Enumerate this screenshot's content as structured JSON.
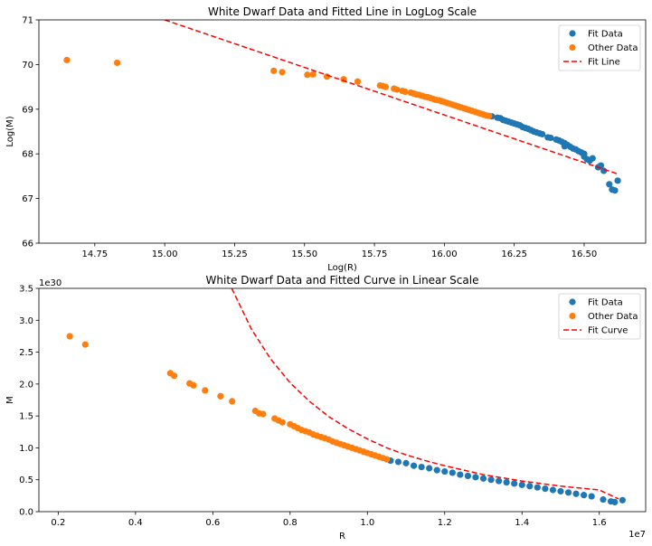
{
  "chart_data": [
    {
      "type": "scatter",
      "title": "White Dwarf Data and Fitted Line in LogLog Scale",
      "xlabel": "Log(R)",
      "ylabel": "Log(M)",
      "offset_text": "",
      "xlim": [
        14.55,
        16.72
      ],
      "ylim": [
        66,
        71
      ],
      "xticks": [
        14.75,
        15.0,
        15.25,
        15.5,
        15.75,
        16.0,
        16.25,
        16.5
      ],
      "xtick_labels": [
        "14.75",
        "15.00",
        "15.25",
        "15.50",
        "15.75",
        "16.00",
        "16.25",
        "16.50"
      ],
      "yticks": [
        66,
        67,
        68,
        69,
        70,
        71
      ],
      "ytick_labels": [
        "66",
        "67",
        "68",
        "69",
        "70",
        "71"
      ],
      "legend_position": "upper right",
      "series": [
        {
          "name": "Fit Data",
          "kind": "scatter",
          "color": "#1f77b4",
          "points": [
            [
              16.17,
              68.84
            ],
            [
              16.19,
              68.81
            ],
            [
              16.2,
              68.8
            ],
            [
              16.21,
              68.76
            ],
            [
              16.22,
              68.74
            ],
            [
              16.23,
              68.72
            ],
            [
              16.24,
              68.7
            ],
            [
              16.25,
              68.68
            ],
            [
              16.26,
              68.66
            ],
            [
              16.27,
              68.64
            ],
            [
              16.28,
              68.6
            ],
            [
              16.29,
              68.58
            ],
            [
              16.3,
              68.56
            ],
            [
              16.31,
              68.53
            ],
            [
              16.32,
              68.5
            ],
            [
              16.33,
              68.48
            ],
            [
              16.34,
              68.46
            ],
            [
              16.35,
              68.44
            ],
            [
              16.37,
              68.37
            ],
            [
              16.38,
              68.36
            ],
            [
              16.4,
              68.32
            ],
            [
              16.41,
              68.3
            ],
            [
              16.42,
              68.27
            ],
            [
              16.43,
              68.24
            ],
            [
              16.43,
              68.17
            ],
            [
              16.44,
              68.2
            ],
            [
              16.45,
              68.16
            ],
            [
              16.46,
              68.12
            ],
            [
              16.47,
              68.1
            ],
            [
              16.48,
              68.06
            ],
            [
              16.49,
              68.03
            ],
            [
              16.5,
              68.0
            ],
            [
              16.5,
              67.94
            ],
            [
              16.51,
              67.88
            ],
            [
              16.52,
              67.85
            ],
            [
              16.53,
              67.9
            ],
            [
              16.55,
              67.7
            ],
            [
              16.56,
              67.74
            ],
            [
              16.57,
              67.62
            ],
            [
              16.59,
              67.32
            ],
            [
              16.6,
              67.2
            ],
            [
              16.61,
              67.18
            ],
            [
              16.62,
              67.4
            ]
          ]
        },
        {
          "name": "Other Data",
          "kind": "scatter",
          "color": "#ff7f0e",
          "points": [
            [
              14.65,
              70.1
            ],
            [
              14.83,
              70.04
            ],
            [
              15.39,
              69.86
            ],
            [
              15.42,
              69.83
            ],
            [
              15.51,
              69.77
            ],
            [
              15.53,
              69.78
            ],
            [
              15.58,
              69.73
            ],
            [
              15.64,
              69.67
            ],
            [
              15.69,
              69.62
            ],
            [
              15.77,
              69.53
            ],
            [
              15.78,
              69.52
            ],
            [
              15.79,
              69.5
            ],
            [
              15.82,
              69.46
            ],
            [
              15.83,
              69.44
            ],
            [
              15.85,
              69.41
            ],
            [
              15.86,
              69.39
            ],
            [
              15.88,
              69.37
            ],
            [
              15.89,
              69.35
            ],
            [
              15.9,
              69.33
            ],
            [
              15.91,
              69.32
            ],
            [
              15.92,
              69.3
            ],
            [
              15.93,
              69.28
            ],
            [
              15.94,
              69.27
            ],
            [
              15.95,
              69.25
            ],
            [
              15.96,
              69.23
            ],
            [
              15.97,
              69.21
            ],
            [
              15.98,
              69.2
            ],
            [
              15.99,
              69.18
            ],
            [
              16.0,
              69.16
            ],
            [
              16.01,
              69.14
            ],
            [
              16.02,
              69.12
            ],
            [
              16.03,
              69.1
            ],
            [
              16.04,
              69.08
            ],
            [
              16.05,
              69.06
            ],
            [
              16.06,
              69.04
            ],
            [
              16.07,
              69.02
            ],
            [
              16.08,
              69.0
            ],
            [
              16.09,
              68.98
            ],
            [
              16.1,
              68.96
            ],
            [
              16.11,
              68.94
            ],
            [
              16.12,
              68.92
            ],
            [
              16.13,
              68.9
            ],
            [
              16.14,
              68.88
            ],
            [
              16.15,
              68.86
            ],
            [
              16.16,
              68.85
            ]
          ]
        },
        {
          "name": "Fit Line",
          "kind": "line",
          "style": "dashed",
          "color": "#ff0000",
          "points": [
            [
              15.0,
              71.0
            ],
            [
              16.62,
              67.55
            ]
          ]
        }
      ]
    },
    {
      "type": "scatter",
      "title": "White Dwarf Data and Fitted Curve in Linear Scale",
      "xlabel": "R",
      "ylabel": "M",
      "offset_text": "1e30",
      "x_offset_text": "1e7",
      "xlim": [
        0.15,
        1.72
      ],
      "ylim": [
        0,
        3.5
      ],
      "xticks": [
        0.2,
        0.4,
        0.6,
        0.8,
        1.0,
        1.2,
        1.4,
        1.6
      ],
      "xtick_labels": [
        "0.2",
        "0.4",
        "0.6",
        "0.8",
        "1.0",
        "1.2",
        "1.4",
        "1.6"
      ],
      "yticks": [
        0,
        0.5,
        1.0,
        1.5,
        2.0,
        2.5,
        3.0,
        3.5
      ],
      "ytick_labels": [
        "0.0",
        "0.5",
        "1.0",
        "1.5",
        "2.0",
        "2.5",
        "3.0",
        "3.5"
      ],
      "legend_position": "upper right",
      "series": [
        {
          "name": "Fit Data",
          "kind": "scatter",
          "color": "#1f77b4",
          "points": [
            [
              1.06,
              0.8
            ],
            [
              1.08,
              0.78
            ],
            [
              1.1,
              0.76
            ],
            [
              1.12,
              0.72
            ],
            [
              1.14,
              0.7
            ],
            [
              1.16,
              0.68
            ],
            [
              1.18,
              0.65
            ],
            [
              1.2,
              0.63
            ],
            [
              1.22,
              0.61
            ],
            [
              1.24,
              0.58
            ],
            [
              1.26,
              0.56
            ],
            [
              1.28,
              0.54
            ],
            [
              1.3,
              0.52
            ],
            [
              1.32,
              0.5
            ],
            [
              1.34,
              0.48
            ],
            [
              1.36,
              0.46
            ],
            [
              1.38,
              0.44
            ],
            [
              1.4,
              0.42
            ],
            [
              1.42,
              0.4
            ],
            [
              1.44,
              0.38
            ],
            [
              1.46,
              0.36
            ],
            [
              1.48,
              0.34
            ],
            [
              1.5,
              0.32
            ],
            [
              1.52,
              0.3
            ],
            [
              1.54,
              0.28
            ],
            [
              1.56,
              0.26
            ],
            [
              1.58,
              0.24
            ],
            [
              1.61,
              0.19
            ],
            [
              1.63,
              0.16
            ],
            [
              1.64,
              0.15
            ],
            [
              1.66,
              0.18
            ]
          ]
        },
        {
          "name": "Other Data",
          "kind": "scatter",
          "color": "#ff7f0e",
          "points": [
            [
              0.23,
              2.75
            ],
            [
              0.27,
              2.62
            ],
            [
              0.49,
              2.17
            ],
            [
              0.5,
              2.13
            ],
            [
              0.54,
              2.01
            ],
            [
              0.55,
              1.98
            ],
            [
              0.58,
              1.9
            ],
            [
              0.62,
              1.81
            ],
            [
              0.65,
              1.73
            ],
            [
              0.71,
              1.58
            ],
            [
              0.72,
              1.54
            ],
            [
              0.73,
              1.53
            ],
            [
              0.76,
              1.46
            ],
            [
              0.77,
              1.43
            ],
            [
              0.78,
              1.4
            ],
            [
              0.8,
              1.37
            ],
            [
              0.81,
              1.34
            ],
            [
              0.82,
              1.31
            ],
            [
              0.83,
              1.28
            ],
            [
              0.84,
              1.26
            ],
            [
              0.85,
              1.24
            ],
            [
              0.86,
              1.21
            ],
            [
              0.87,
              1.19
            ],
            [
              0.88,
              1.17
            ],
            [
              0.89,
              1.15
            ],
            [
              0.9,
              1.13
            ],
            [
              0.91,
              1.1
            ],
            [
              0.92,
              1.08
            ],
            [
              0.93,
              1.06
            ],
            [
              0.94,
              1.04
            ],
            [
              0.95,
              1.02
            ],
            [
              0.96,
              1.0
            ],
            [
              0.97,
              0.98
            ],
            [
              0.98,
              0.96
            ],
            [
              0.99,
              0.94
            ],
            [
              1.0,
              0.92
            ],
            [
              1.01,
              0.9
            ],
            [
              1.02,
              0.88
            ],
            [
              1.03,
              0.86
            ],
            [
              1.04,
              0.84
            ],
            [
              1.05,
              0.82
            ]
          ]
        },
        {
          "name": "Fit Curve",
          "kind": "line",
          "style": "dashed",
          "color": "#ff0000",
          "points": [
            [
              0.649,
              3.5
            ],
            [
              0.7,
              2.86
            ],
            [
              0.75,
              2.39
            ],
            [
              0.8,
              2.02
            ],
            [
              0.85,
              1.73
            ],
            [
              0.9,
              1.49
            ],
            [
              0.95,
              1.3
            ],
            [
              1.0,
              1.14
            ],
            [
              1.05,
              1.0
            ],
            [
              1.1,
              0.89
            ],
            [
              1.15,
              0.8
            ],
            [
              1.2,
              0.72
            ],
            [
              1.25,
              0.65
            ],
            [
              1.3,
              0.58
            ],
            [
              1.35,
              0.53
            ],
            [
              1.4,
              0.48
            ],
            [
              1.45,
              0.44
            ],
            [
              1.5,
              0.4
            ],
            [
              1.55,
              0.37
            ],
            [
              1.6,
              0.34
            ],
            [
              1.65,
              0.2
            ]
          ]
        }
      ]
    }
  ]
}
